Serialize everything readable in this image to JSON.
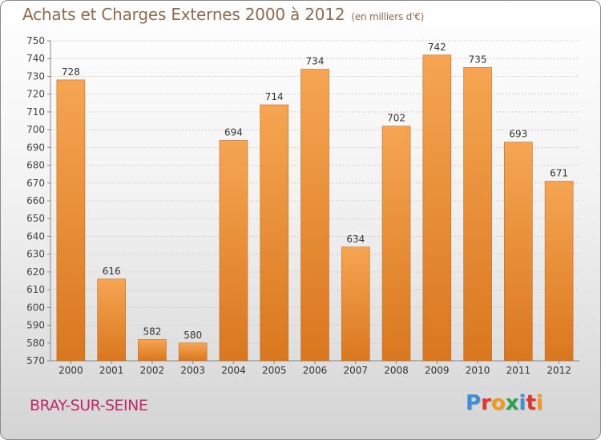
{
  "header": {
    "title": "Achats et Charges Externes 2000 à 2012",
    "subtitle": "(en milliers d'€)"
  },
  "footer": {
    "city": "BRAY-SUR-SEINE",
    "logo": "Proxiti"
  },
  "colors": {
    "bar": "#f0953a",
    "bar_dark": "#d4731f",
    "title": "#8f6a4c",
    "city": "#c02a6a",
    "logo_letters": [
      "#3b8fd8",
      "#e2342b",
      "#f19a1f",
      "#2aa24a",
      "#3b8fd8",
      "#e2342b",
      "#f19a1f"
    ]
  },
  "chart_data": {
    "type": "bar",
    "title": "Achats et Charges Externes 2000 à 2012",
    "subtitle": "(en milliers d'€)",
    "categories": [
      "2000",
      "2001",
      "2002",
      "2003",
      "2004",
      "2005",
      "2006",
      "2007",
      "2008",
      "2009",
      "2010",
      "2011",
      "2012"
    ],
    "values": [
      728,
      616,
      582,
      580,
      694,
      714,
      734,
      634,
      702,
      742,
      735,
      693,
      671
    ],
    "ylim": [
      570,
      750
    ],
    "yticks": [
      570,
      580,
      590,
      600,
      610,
      620,
      630,
      640,
      650,
      660,
      670,
      680,
      690,
      700,
      710,
      720,
      730,
      740,
      750
    ],
    "grid": true,
    "xlabel": "",
    "ylabel": ""
  }
}
